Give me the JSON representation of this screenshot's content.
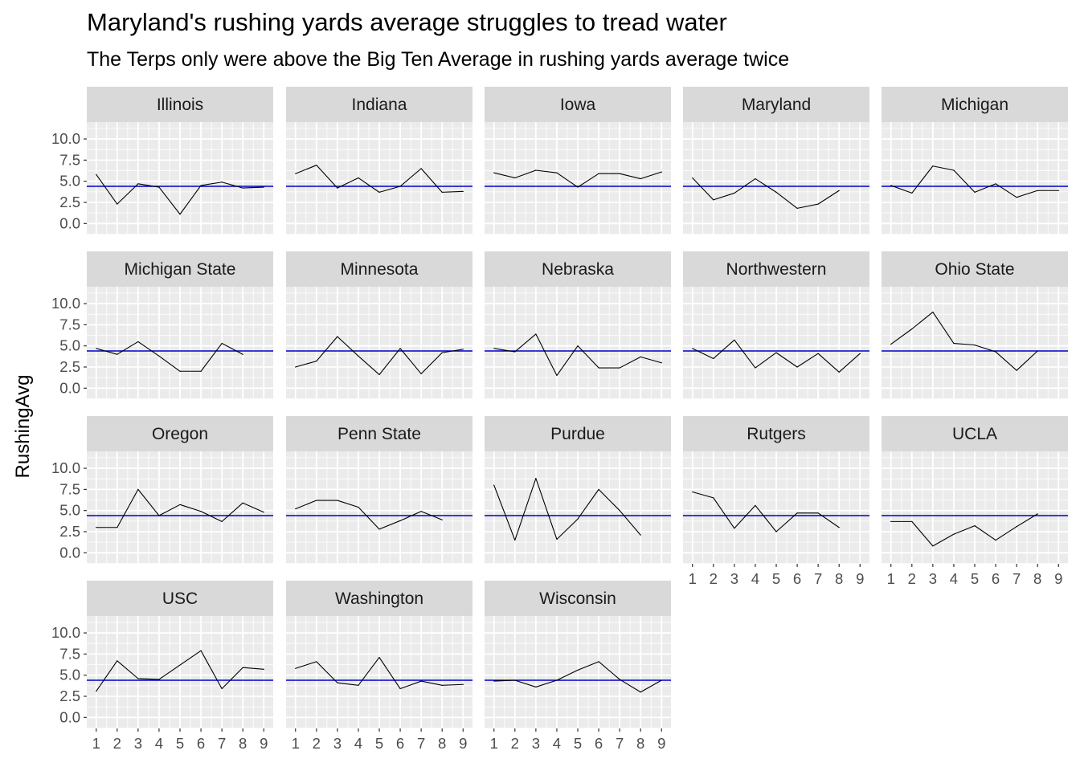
{
  "chart_data": {
    "type": "line",
    "title": "Maryland's rushing yards average struggles to tread water",
    "subtitle": "The Terps only were above the Big Ten Average in rushing yards average twice",
    "ylabel": "RushingAvg",
    "xlabel": "",
    "facet_layout": "5 columns x 4 rows",
    "x_ticks": [
      "1",
      "2",
      "3",
      "4",
      "5",
      "6",
      "7",
      "8",
      "9"
    ],
    "y_ticks": [
      "0.0",
      "2.5",
      "5.0",
      "7.5",
      "10.0"
    ],
    "ylim": [
      -1.3,
      12.0
    ],
    "xlim": [
      0.55,
      9.45
    ],
    "reference_line": {
      "value": 4.4,
      "color": "#0000cc"
    },
    "series_color": "#000000",
    "panel_background": "#ebebeb",
    "strip_background": "#d9d9d9",
    "grid": true,
    "facets": [
      {
        "name": "Illinois",
        "values": [
          5.8,
          2.3,
          4.7,
          4.3,
          1.1,
          4.5,
          4.9,
          4.2,
          4.3
        ]
      },
      {
        "name": "Indiana",
        "values": [
          5.9,
          6.9,
          4.2,
          5.4,
          3.7,
          4.4,
          6.5,
          3.7,
          3.8
        ]
      },
      {
        "name": "Iowa",
        "values": [
          6.0,
          5.4,
          6.3,
          6.0,
          4.3,
          5.9,
          5.9,
          5.3,
          6.1
        ]
      },
      {
        "name": "Maryland",
        "values": [
          5.4,
          2.8,
          3.6,
          5.3,
          3.7,
          1.8,
          2.3,
          3.9
        ]
      },
      {
        "name": "Michigan",
        "values": [
          4.5,
          3.6,
          6.8,
          6.3,
          3.7,
          4.7,
          3.1,
          3.9,
          3.9
        ]
      },
      {
        "name": "Michigan State",
        "values": [
          4.7,
          4.0,
          5.5,
          3.8,
          2.0,
          2.0,
          5.3,
          4.0
        ]
      },
      {
        "name": "Minnesota",
        "values": [
          2.5,
          3.2,
          6.1,
          3.8,
          1.6,
          4.7,
          1.7,
          4.2,
          4.6
        ]
      },
      {
        "name": "Nebraska",
        "values": [
          4.7,
          4.3,
          6.4,
          1.5,
          5.0,
          2.4,
          2.4,
          3.7,
          3.0
        ]
      },
      {
        "name": "Northwestern",
        "values": [
          4.7,
          3.5,
          5.7,
          2.4,
          4.2,
          2.5,
          4.1,
          1.9,
          4.1
        ]
      },
      {
        "name": "Ohio State",
        "values": [
          5.2,
          7.0,
          9.0,
          5.3,
          5.1,
          4.3,
          2.1,
          4.4
        ]
      },
      {
        "name": "Oregon",
        "values": [
          3.0,
          3.0,
          7.5,
          4.4,
          5.7,
          4.9,
          3.7,
          5.9,
          4.8
        ]
      },
      {
        "name": "Penn State",
        "values": [
          5.2,
          6.2,
          6.2,
          5.4,
          2.8,
          3.8,
          4.9,
          3.9
        ]
      },
      {
        "name": "Purdue",
        "values": [
          8.0,
          1.5,
          8.8,
          1.6,
          4.0,
          7.5,
          5.0,
          2.1
        ]
      },
      {
        "name": "Rutgers",
        "values": [
          7.2,
          6.5,
          2.9,
          5.6,
          2.5,
          4.7,
          4.7,
          3.0
        ]
      },
      {
        "name": "UCLA",
        "values": [
          3.7,
          3.7,
          0.8,
          2.2,
          3.2,
          1.5,
          3.1,
          4.6
        ]
      },
      {
        "name": "USC",
        "values": [
          3.1,
          6.7,
          4.6,
          4.5,
          6.2,
          7.9,
          3.4,
          5.9,
          5.7
        ]
      },
      {
        "name": "Washington",
        "values": [
          5.8,
          6.6,
          4.1,
          3.8,
          7.1,
          3.4,
          4.3,
          3.8,
          3.9
        ]
      },
      {
        "name": "Wisconsin",
        "values": [
          4.3,
          4.4,
          3.6,
          4.4,
          5.6,
          6.6,
          4.5,
          3.0,
          4.4
        ]
      }
    ]
  }
}
